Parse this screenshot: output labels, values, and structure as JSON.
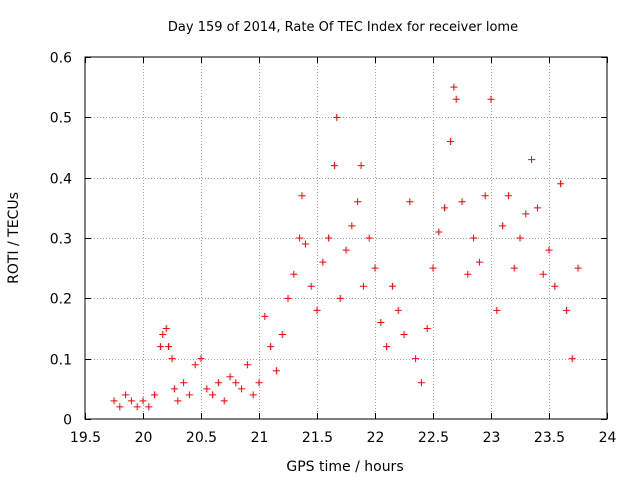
{
  "chart_data": {
    "type": "scatter",
    "title": "Day 159 of 2014, Rate Of TEC Index for receiver lome",
    "xlabel": "GPS time / hours",
    "ylabel": "ROTI / TECUs",
    "xlim": [
      19.5,
      24
    ],
    "ylim": [
      0,
      0.6
    ],
    "xticks": [
      19.5,
      20,
      20.5,
      21,
      21.5,
      22,
      22.5,
      23,
      23.5,
      24
    ],
    "xtick_labels": [
      "19.5",
      "20",
      "20.5",
      "21",
      "21.5",
      "22",
      "22.5",
      "23",
      "23.5",
      "24"
    ],
    "yticks": [
      0,
      0.1,
      0.2,
      0.3,
      0.4,
      0.5,
      0.6
    ],
    "ytick_labels": [
      "0",
      "0.1",
      "0.2",
      "0.3",
      "0.4",
      "0.5",
      "0.6"
    ],
    "grid": true,
    "marker": "+",
    "marker_color": "#ff0000",
    "series": [
      {
        "name": "ROTI",
        "x": [
          19.75,
          19.8,
          19.85,
          19.9,
          19.95,
          20.0,
          20.05,
          20.1,
          20.15,
          20.17,
          20.2,
          20.22,
          20.25,
          20.27,
          20.3,
          20.35,
          20.4,
          20.45,
          20.5,
          20.55,
          20.6,
          20.65,
          20.7,
          20.75,
          20.8,
          20.85,
          20.9,
          20.95,
          21.0,
          21.05,
          21.1,
          21.15,
          21.2,
          21.25,
          21.3,
          21.35,
          21.37,
          21.4,
          21.45,
          21.5,
          21.55,
          21.6,
          21.65,
          21.67,
          21.7,
          21.75,
          21.8,
          21.85,
          21.88,
          21.9,
          21.95,
          22.0,
          22.05,
          22.1,
          22.15,
          22.2,
          22.25,
          22.3,
          22.35,
          22.4,
          22.45,
          22.5,
          22.55,
          22.6,
          22.65,
          22.68,
          22.7,
          22.75,
          22.8,
          22.85,
          22.9,
          22.95,
          23.0,
          23.05,
          23.1,
          23.15,
          23.2,
          23.25,
          23.3,
          23.35,
          23.4,
          23.45,
          23.5,
          23.55,
          23.6,
          23.65,
          23.7,
          23.75
        ],
        "y": [
          0.03,
          0.02,
          0.04,
          0.03,
          0.02,
          0.03,
          0.02,
          0.04,
          0.12,
          0.14,
          0.15,
          0.12,
          0.1,
          0.05,
          0.03,
          0.06,
          0.04,
          0.09,
          0.1,
          0.05,
          0.04,
          0.06,
          0.03,
          0.07,
          0.06,
          0.05,
          0.09,
          0.04,
          0.06,
          0.17,
          0.12,
          0.08,
          0.14,
          0.2,
          0.24,
          0.3,
          0.37,
          0.29,
          0.22,
          0.18,
          0.26,
          0.3,
          0.42,
          0.5,
          0.2,
          0.28,
          0.32,
          0.36,
          0.42,
          0.22,
          0.3,
          0.25,
          0.16,
          0.12,
          0.22,
          0.18,
          0.14,
          0.36,
          0.1,
          0.06,
          0.15,
          0.25,
          0.31,
          0.35,
          0.46,
          0.55,
          0.53,
          0.36,
          0.24,
          0.3,
          0.26,
          0.37,
          0.53,
          0.18,
          0.32,
          0.37,
          0.25,
          0.3,
          0.34,
          0.43,
          0.35,
          0.24,
          0.28,
          0.22,
          0.39,
          0.18,
          0.1,
          0.25
        ]
      }
    ]
  }
}
